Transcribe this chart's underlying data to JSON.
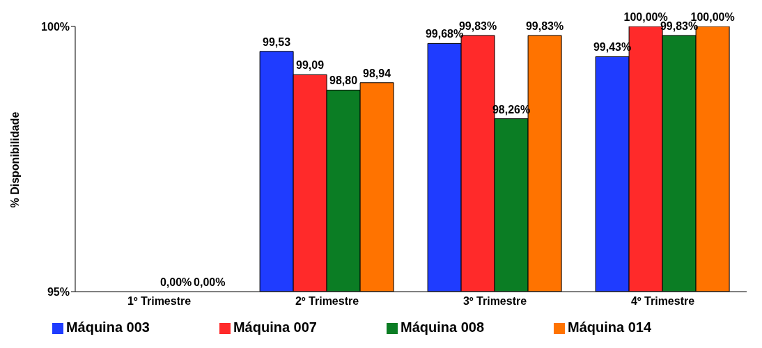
{
  "chart_data": {
    "type": "bar",
    "ylabel": "% Disponibilidade",
    "categories": [
      "1º Trimestre",
      "2º Trimestre",
      "3º Trimestre",
      "4º Trimestre"
    ],
    "series": [
      {
        "name": "Máquina 003",
        "color": "#1f3cff",
        "values": [
          null,
          99.53,
          99.68,
          99.43
        ],
        "value_labels": [
          null,
          "99,53",
          "99,68%",
          "99,43%"
        ]
      },
      {
        "name": "Máquina 007",
        "color": "#ff2a2a",
        "values": [
          null,
          99.09,
          99.83,
          100
        ],
        "value_labels": [
          null,
          "99,09",
          "99,83%",
          "100,00%"
        ]
      },
      {
        "name": "Máquina 008",
        "color": "#0b7d24",
        "values": [
          null,
          98.8,
          98.26,
          99.83
        ],
        "value_labels": [
          "0,00%",
          "98,80",
          "98,26%",
          "99,83%"
        ]
      },
      {
        "name": "Máquina 014",
        "color": "#ff7300",
        "values": [
          null,
          98.94,
          99.83,
          100
        ],
        "value_labels": [
          "0,00%",
          "98,94",
          "99,83%",
          "100,00%"
        ]
      }
    ],
    "ylim": [
      95,
      100
    ],
    "yticks": [
      {
        "value": 95,
        "label": "95%"
      },
      {
        "value": 100,
        "label": "100%"
      }
    ],
    "grid": false,
    "legend": "bottom"
  }
}
